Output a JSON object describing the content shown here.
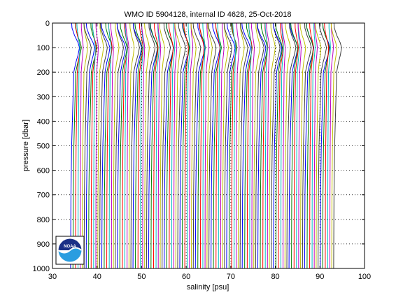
{
  "chart_data": {
    "type": "line",
    "title": "WMO ID 5904128, internal ID 4628, 25-Oct-2018",
    "xlabel": "salinity [psu]",
    "ylabel": "pressure [dbar]",
    "xlim": [
      30,
      100
    ],
    "ylim": [
      0,
      1000
    ],
    "y_reversed": true,
    "x_ticks": [
      30,
      40,
      50,
      60,
      70,
      80,
      90,
      100
    ],
    "y_ticks": [
      0,
      100,
      200,
      300,
      400,
      500,
      600,
      700,
      800,
      900,
      1000
    ],
    "grid": "dotted",
    "series_pattern": {
      "description_of_structure": "waterfall of offset salinity profiles",
      "count": 119,
      "first_surface_salinity": 34.3,
      "offset_per_profile": 0.5,
      "deep_salinity_drift": -0.15,
      "colors": [
        "#0000ff",
        "#008000",
        "#ff0000",
        "#00bfbf",
        "#bf00bf",
        "#bfbf00",
        "#404040"
      ]
    },
    "profile_shape": {
      "pressure": [
        0,
        20,
        50,
        80,
        100,
        130,
        160,
        200,
        300,
        500,
        700,
        1000
      ],
      "relative_salinity": [
        0.0,
        0.05,
        0.4,
        0.9,
        1.1,
        0.9,
        0.6,
        0.3,
        0.2,
        0.0,
        -0.1,
        -0.15
      ]
    }
  },
  "logo": {
    "text": "NOAA",
    "colors": {
      "top": "#1a2f86",
      "bottom": "#2a9de0",
      "ring": "#ffffff"
    }
  }
}
